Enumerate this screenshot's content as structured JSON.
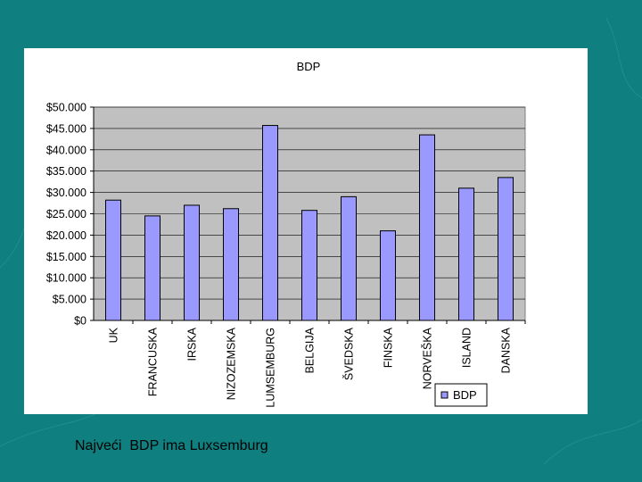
{
  "slide": {
    "background_color": "#0f7f7f",
    "caption": "Najveći  BDP ima Luxsemburg"
  },
  "chart_data": {
    "type": "bar",
    "title": "BDP",
    "xlabel": "",
    "ylabel": "",
    "categories": [
      "UK",
      "FRANCUSKA",
      "IRSKA",
      "NIZOZEMSKA",
      "LUMSEMBURG",
      "BELGIJA",
      "ŠVEDSKA",
      "FINSKA",
      "NORVEŠKA",
      "ISLAND",
      "DANSKA"
    ],
    "series": [
      {
        "name": "BDP",
        "values": [
          28200,
          24500,
          27000,
          26200,
          45700,
          25800,
          29000,
          21000,
          43500,
          31000,
          33500
        ]
      }
    ],
    "ylim": [
      0,
      50000
    ],
    "y_ticks": [
      "$0",
      "$5.000",
      "$10.000",
      "$15.000",
      "$20.000",
      "$25.000",
      "$30.000",
      "$35.000",
      "$40.000",
      "$45.000",
      "$50.000"
    ],
    "y_tick_values": [
      0,
      5000,
      10000,
      15000,
      20000,
      25000,
      30000,
      35000,
      40000,
      45000,
      50000
    ],
    "grid": true,
    "legend_position": "bottom-right",
    "colors": {
      "bar_fill": "#9999ff",
      "bar_stroke": "#000000",
      "plot_bg": "#c0c0c0",
      "gridline": "#000000"
    }
  }
}
